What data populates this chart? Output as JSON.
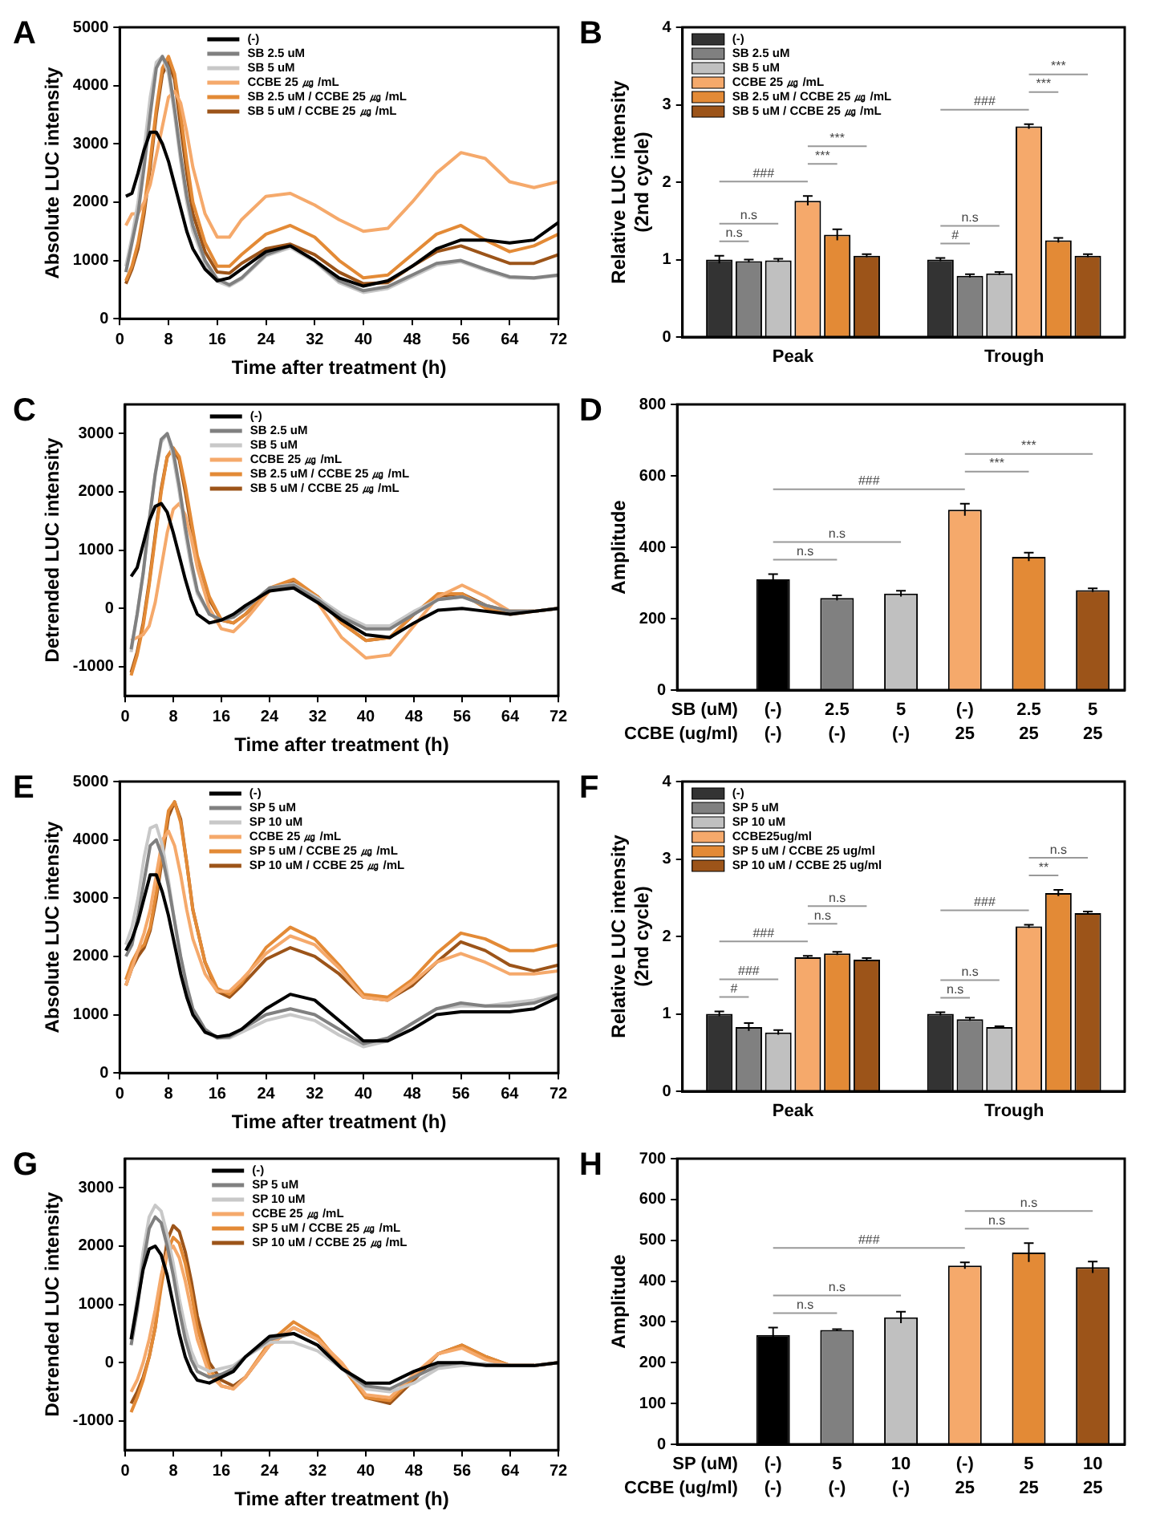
{
  "chart_data": [
    {
      "type": "line",
      "title": "A",
      "xlabel": "Time after treatment (h)",
      "ylabel": "Absolute LUC intensity",
      "xlim": [
        0,
        72
      ],
      "xticks": [
        0,
        8,
        16,
        24,
        32,
        40,
        48,
        56,
        64,
        72
      ],
      "ylim": [
        0,
        5000
      ],
      "yticks": [
        0,
        1000,
        2000,
        3000,
        4000,
        5000
      ],
      "legend": "top",
      "x": [
        1,
        2,
        3,
        4,
        5,
        6,
        7,
        8,
        9,
        10,
        11,
        12,
        14,
        16,
        18,
        20,
        24,
        28,
        32,
        36,
        40,
        44,
        48,
        52,
        56,
        60,
        64,
        68,
        72
      ],
      "series": [
        {
          "name": "(-)",
          "color": "#000000",
          "values": [
            2100,
            2150,
            2500,
            2900,
            3200,
            3200,
            3000,
            2700,
            2300,
            1900,
            1500,
            1200,
            850,
            650,
            700,
            850,
            1150,
            1250,
            1000,
            700,
            560,
            650,
            900,
            1200,
            1350,
            1350,
            1300,
            1350,
            1650
          ]
        },
        {
          "name": "SB 2.5 uM",
          "color": "#808080",
          "values": [
            800,
            1300,
            1800,
            2600,
            3500,
            4300,
            4500,
            4300,
            3600,
            2800,
            2100,
            1600,
            1000,
            680,
            580,
            700,
            1100,
            1250,
            1000,
            650,
            480,
            550,
            750,
            950,
            1000,
            850,
            720,
            700,
            750
          ]
        },
        {
          "name": "SB 5 uM",
          "color": "#c8c8c8",
          "values": [
            900,
            1400,
            2000,
            2900,
            3800,
            4400,
            4500,
            4200,
            3500,
            2700,
            2000,
            1500,
            950,
            640,
            560,
            680,
            1080,
            1220,
            980,
            620,
            450,
            520,
            720,
            920,
            980,
            830,
            700,
            690,
            740
          ]
        },
        {
          "name": "CCBE 25 ㎍ /mL",
          "color": "#f5a96b",
          "values": [
            1600,
            1800,
            1800,
            2000,
            2300,
            2800,
            3300,
            3800,
            3900,
            3700,
            3200,
            2600,
            1800,
            1400,
            1400,
            1700,
            2100,
            2150,
            1950,
            1700,
            1500,
            1550,
            2000,
            2500,
            2850,
            2750,
            2350,
            2250,
            2350
          ]
        },
        {
          "name": "SB 2.5 uM / CCBE 25 ㎍ /mL",
          "color": "#e38a36",
          "values": [
            650,
            900,
            1300,
            1900,
            2700,
            3600,
            4300,
            4500,
            4200,
            3500,
            2700,
            2000,
            1300,
            900,
            900,
            1100,
            1450,
            1600,
            1400,
            1000,
            700,
            750,
            1100,
            1450,
            1600,
            1350,
            1150,
            1250,
            1450
          ]
        },
        {
          "name": "SB 5 uM / CCBE 25 ㎍ /mL",
          "color": "#9c5419",
          "values": [
            600,
            850,
            1200,
            1800,
            2600,
            3500,
            4200,
            4400,
            4100,
            3300,
            2500,
            1800,
            1150,
            800,
            780,
            950,
            1200,
            1280,
            1100,
            800,
            600,
            620,
            900,
            1150,
            1250,
            1100,
            950,
            950,
            1100
          ]
        }
      ]
    },
    {
      "type": "bar",
      "title": "B",
      "ylabel": "Relative LUC intensity\n(2nd cycle)",
      "categories": [
        "Peak",
        "Trough"
      ],
      "ylim": [
        0,
        4
      ],
      "yticks": [
        0,
        1,
        2,
        3,
        4
      ],
      "legend": "top left",
      "annotations": [
        "n.s",
        "n.s",
        "###",
        "***",
        "***",
        "#",
        "n.s",
        "###",
        "***",
        "***"
      ],
      "series": [
        {
          "name": "(-)",
          "color": "#333333",
          "values": [
            1.0,
            1.0
          ],
          "errors": [
            0.05,
            0.02
          ]
        },
        {
          "name": "SB 2.5 uM",
          "color": "#808080",
          "values": [
            0.98,
            0.79
          ],
          "errors": [
            0.02,
            0.02
          ]
        },
        {
          "name": "SB 5 uM",
          "color": "#c0c0c0",
          "values": [
            0.99,
            0.82
          ],
          "errors": [
            0.02,
            0.02
          ]
        },
        {
          "name": "CCBE 25 ㎍ /mL",
          "color": "#f5a96b",
          "values": [
            1.76,
            2.72
          ],
          "errors": [
            0.06,
            0.03
          ]
        },
        {
          "name": "SB 2.5 uM / CCBE 25 ㎍ /mL",
          "color": "#e38a36",
          "values": [
            1.32,
            1.25
          ],
          "errors": [
            0.07,
            0.03
          ]
        },
        {
          "name": "SB 5 uM / CCBE 25 ㎍ /mL",
          "color": "#9c5419",
          "values": [
            1.05,
            1.05
          ],
          "errors": [
            0.02,
            0.02
          ]
        }
      ]
    },
    {
      "type": "line",
      "title": "C",
      "xlabel": "Time after treatment (h)",
      "ylabel": "Detrended LUC intensity",
      "xlim": [
        0,
        72
      ],
      "xticks": [
        0,
        8,
        16,
        24,
        32,
        40,
        48,
        56,
        64,
        72
      ],
      "ylim": [
        -1500,
        3500
      ],
      "yticks": [
        -1000,
        0,
        1000,
        2000,
        3000
      ],
      "legend": "top",
      "x": [
        1,
        2,
        3,
        4,
        5,
        6,
        7,
        8,
        9,
        10,
        11,
        12,
        14,
        16,
        18,
        20,
        24,
        28,
        32,
        36,
        40,
        44,
        48,
        52,
        56,
        60,
        64,
        68,
        72
      ],
      "series": [
        {
          "name": "(-)",
          "color": "#000000",
          "values": [
            550,
            700,
            1100,
            1500,
            1750,
            1800,
            1650,
            1300,
            900,
            500,
            150,
            -100,
            -250,
            -200,
            -100,
            50,
            300,
            350,
            100,
            -200,
            -450,
            -500,
            -250,
            -30,
            0,
            -50,
            -100,
            -50,
            0
          ]
        },
        {
          "name": "SB 2.5 uM",
          "color": "#808080",
          "values": [
            -700,
            -100,
            600,
            1500,
            2300,
            2900,
            3000,
            2700,
            2100,
            1400,
            800,
            300,
            -100,
            -200,
            -150,
            0,
            350,
            400,
            150,
            -150,
            -350,
            -350,
            -100,
            150,
            200,
            50,
            -50,
            -50,
            0
          ]
        },
        {
          "name": "SB 5 uM",
          "color": "#c8c8c8",
          "values": [
            -750,
            -100,
            600,
            1500,
            2300,
            2850,
            3000,
            2600,
            2000,
            1300,
            700,
            250,
            -100,
            -200,
            -150,
            0,
            350,
            420,
            180,
            -100,
            -300,
            -300,
            -50,
            150,
            200,
            50,
            -50,
            -50,
            0
          ]
        },
        {
          "name": "CCBE 25 ㎍ /mL",
          "color": "#f5a96b",
          "values": [
            -550,
            -500,
            -450,
            -300,
            100,
            700,
            1300,
            1700,
            1800,
            1600,
            1200,
            700,
            0,
            -350,
            -400,
            -200,
            300,
            400,
            100,
            -500,
            -850,
            -800,
            -300,
            200,
            400,
            200,
            -50,
            -50,
            0
          ]
        },
        {
          "name": "SB 2.5 uM / CCBE 25 ㎍ /mL",
          "color": "#e38a36",
          "values": [
            -1150,
            -800,
            -300,
            400,
            1200,
            2000,
            2600,
            2750,
            2600,
            2100,
            1500,
            900,
            200,
            -200,
            -250,
            -100,
            350,
            500,
            200,
            -250,
            -550,
            -500,
            -100,
            250,
            250,
            0,
            -100,
            -50,
            0
          ]
        },
        {
          "name": "SB 5 uM / CCBE 25 ㎍ /mL",
          "color": "#9c5419",
          "values": [
            -1100,
            -750,
            -250,
            450,
            1250,
            2050,
            2600,
            2750,
            2550,
            2000,
            1400,
            850,
            150,
            -200,
            -250,
            -100,
            300,
            450,
            200,
            -250,
            -550,
            -500,
            -100,
            200,
            250,
            50,
            -50,
            -50,
            0
          ]
        }
      ]
    },
    {
      "type": "bar",
      "title": "D",
      "ylabel": "Amplitude",
      "categories": [
        "SB (uM)\nCCBE (ug/ml)",
        "(-)\n(-)",
        "2.5\n(-)",
        "5\n(-)",
        "(-)\n25",
        "2.5\n25",
        "5\n25"
      ],
      "values": [
        null,
        310,
        258,
        270,
        505,
        373,
        280
      ],
      "errors": [
        null,
        15,
        7,
        8,
        17,
        12,
        5
      ],
      "colors": [
        null,
        "#000000",
        "#808080",
        "#c0c0c0",
        "#f5a96b",
        "#e38a36",
        "#9c5419"
      ],
      "ylim": [
        0,
        800
      ],
      "yticks": [
        0,
        200,
        400,
        600,
        800
      ],
      "annotations": [
        "n.s",
        "n.s",
        "###",
        "***",
        "***"
      ]
    },
    {
      "type": "line",
      "title": "E",
      "xlabel": "Time after treatment (h)",
      "ylabel": "Absolute LUC intensity",
      "xlim": [
        0,
        72
      ],
      "xticks": [
        0,
        8,
        16,
        24,
        32,
        40,
        48,
        56,
        64,
        72
      ],
      "ylim": [
        0,
        5000
      ],
      "yticks": [
        0,
        1000,
        2000,
        3000,
        4000,
        5000
      ],
      "legend": "top",
      "x": [
        1,
        2,
        3,
        4,
        5,
        6,
        7,
        8,
        9,
        10,
        11,
        12,
        14,
        16,
        18,
        20,
        24,
        28,
        32,
        36,
        40,
        44,
        48,
        52,
        56,
        60,
        64,
        68,
        72
      ],
      "series": [
        {
          "name": "(-)",
          "color": "#000000",
          "values": [
            2100,
            2300,
            2600,
            3000,
            3400,
            3400,
            3100,
            2700,
            2200,
            1700,
            1300,
            1000,
            700,
            620,
            650,
            750,
            1100,
            1350,
            1250,
            900,
            550,
            550,
            750,
            1000,
            1050,
            1050,
            1050,
            1100,
            1300
          ]
        },
        {
          "name": "SP 5 uM",
          "color": "#808080",
          "values": [
            2000,
            2200,
            2700,
            3300,
            3900,
            4000,
            3700,
            3200,
            2600,
            2000,
            1500,
            1100,
            750,
            600,
            620,
            750,
            1000,
            1100,
            1000,
            750,
            500,
            600,
            850,
            1100,
            1200,
            1150,
            1150,
            1200,
            1350
          ]
        },
        {
          "name": "SP 10 uM",
          "color": "#c8c8c8",
          "values": [
            2200,
            2500,
            3000,
            3700,
            4200,
            4250,
            3900,
            3300,
            2600,
            1900,
            1400,
            1000,
            700,
            600,
            600,
            700,
            900,
            1000,
            900,
            650,
            450,
            550,
            850,
            1100,
            1150,
            1150,
            1200,
            1250,
            1350
          ]
        },
        {
          "name": "CCBE 25 ㎍ /mL",
          "color": "#f5a96b",
          "values": [
            1500,
            1800,
            2100,
            2400,
            2800,
            3400,
            4000,
            4150,
            3900,
            3400,
            2800,
            2300,
            1700,
            1400,
            1400,
            1600,
            2050,
            2350,
            2200,
            1800,
            1300,
            1250,
            1550,
            1900,
            2050,
            1900,
            1700,
            1700,
            1750
          ]
        },
        {
          "name": "SP 5 uM / CCBE 25 ㎍ /mL",
          "color": "#e38a36",
          "values": [
            1600,
            1900,
            2100,
            2200,
            2500,
            3100,
            3800,
            4500,
            4650,
            4300,
            3600,
            2800,
            1900,
            1450,
            1350,
            1550,
            2150,
            2500,
            2300,
            1850,
            1350,
            1300,
            1600,
            2050,
            2400,
            2300,
            2100,
            2100,
            2200
          ]
        },
        {
          "name": "SP 10 uM / CCBE 25 ㎍ /mL",
          "color": "#9c5419",
          "values": [
            1500,
            1800,
            2000,
            2150,
            2450,
            3000,
            3700,
            4400,
            4650,
            4350,
            3600,
            2800,
            1900,
            1400,
            1300,
            1500,
            1950,
            2150,
            2000,
            1700,
            1300,
            1250,
            1500,
            1900,
            2250,
            2100,
            1850,
            1750,
            1850
          ]
        }
      ]
    },
    {
      "type": "bar",
      "title": "F",
      "ylabel": "Relative LUC intensity\n(2nd cycle)",
      "categories": [
        "Peak",
        "Trough"
      ],
      "ylim": [
        0,
        4
      ],
      "yticks": [
        0,
        1,
        2,
        3,
        4
      ],
      "legend": "top left",
      "annotations": [
        "#",
        "###",
        "###",
        "n.s",
        "n.s",
        "n.s",
        "n.s",
        "###",
        "**",
        "n.s"
      ],
      "series": [
        {
          "name": "(-)",
          "color": "#333333",
          "values": [
            1.0,
            1.0
          ],
          "errors": [
            0.03,
            0.02
          ]
        },
        {
          "name": "SP 5 uM",
          "color": "#808080",
          "values": [
            0.83,
            0.93
          ],
          "errors": [
            0.05,
            0.02
          ]
        },
        {
          "name": "SP 10 uM",
          "color": "#c0c0c0",
          "values": [
            0.76,
            0.83
          ],
          "errors": [
            0.03,
            0.01
          ]
        },
        {
          "name": "CCBE25ug/ml",
          "color": "#f5a96b",
          "values": [
            1.73,
            2.13
          ],
          "errors": [
            0.02,
            0.02
          ]
        },
        {
          "name": "SP 5 uM / CCBE 25 ug/ml",
          "color": "#e38a36",
          "values": [
            1.78,
            2.56
          ],
          "errors": [
            0.02,
            0.04
          ]
        },
        {
          "name": "SP 10 uM / CCBE 25 ug/ml",
          "color": "#9c5419",
          "values": [
            1.7,
            2.3
          ],
          "errors": [
            0.02,
            0.02
          ]
        }
      ]
    },
    {
      "type": "line",
      "title": "G",
      "xlabel": "Time after treatment (h)",
      "ylabel": "Detrended LUC intensity",
      "xlim": [
        0,
        72
      ],
      "xticks": [
        0,
        8,
        16,
        24,
        32,
        40,
        48,
        56,
        64,
        72
      ],
      "ylim": [
        -1500,
        3500
      ],
      "yticks": [
        -1000,
        0,
        1000,
        2000,
        3000
      ],
      "legend": "top",
      "x": [
        1,
        2,
        3,
        4,
        5,
        6,
        7,
        8,
        9,
        10,
        11,
        12,
        14,
        16,
        18,
        20,
        24,
        28,
        32,
        36,
        40,
        44,
        48,
        52,
        56,
        60,
        64,
        68,
        72
      ],
      "series": [
        {
          "name": "(-)",
          "color": "#000000",
          "values": [
            400,
            1000,
            1600,
            1950,
            2000,
            1850,
            1500,
            1000,
            500,
            100,
            -150,
            -300,
            -350,
            -250,
            -150,
            100,
            450,
            500,
            300,
            -100,
            -350,
            -350,
            -150,
            0,
            0,
            -50,
            -50,
            -50,
            0
          ]
        },
        {
          "name": "SP 5 uM",
          "color": "#808080",
          "values": [
            300,
            900,
            1700,
            2300,
            2500,
            2400,
            2000,
            1500,
            900,
            400,
            50,
            -150,
            -250,
            -200,
            -100,
            100,
            400,
            500,
            300,
            -100,
            -400,
            -450,
            -250,
            -50,
            0,
            -30,
            -50,
            -50,
            0
          ]
        },
        {
          "name": "SP 10 uM",
          "color": "#c8c8c8",
          "values": [
            400,
            1100,
            1900,
            2500,
            2700,
            2600,
            2200,
            1700,
            1100,
            600,
            200,
            -50,
            -150,
            -100,
            -50,
            100,
            350,
            350,
            200,
            -100,
            -450,
            -500,
            -350,
            -100,
            -50,
            -30,
            -50,
            -50,
            0
          ]
        },
        {
          "name": "CCBE 25 ㎍ /mL",
          "color": "#f5a96b",
          "values": [
            -500,
            -300,
            0,
            400,
            900,
            1500,
            1900,
            2000,
            1800,
            1400,
            900,
            400,
            -200,
            -400,
            -450,
            -250,
            300,
            600,
            400,
            0,
            -550,
            -600,
            -200,
            150,
            250,
            50,
            -50,
            -50,
            0
          ]
        },
        {
          "name": "SP 5 uM / CCBE 25 ㎍ /mL",
          "color": "#e38a36",
          "values": [
            -850,
            -600,
            -300,
            100,
            600,
            1300,
            1900,
            2150,
            2050,
            1700,
            1200,
            600,
            -100,
            -400,
            -450,
            -250,
            350,
            700,
            450,
            -50,
            -600,
            -650,
            -250,
            150,
            300,
            100,
            -50,
            -50,
            0
          ]
        },
        {
          "name": "SP 10 uM / CCBE 25 ㎍ /mL",
          "color": "#9c5419",
          "values": [
            -700,
            -500,
            -250,
            100,
            600,
            1400,
            2100,
            2350,
            2250,
            1900,
            1400,
            800,
            0,
            -300,
            -400,
            -250,
            300,
            600,
            400,
            -50,
            -600,
            -700,
            -300,
            150,
            300,
            100,
            -50,
            -50,
            0
          ]
        }
      ]
    },
    {
      "type": "bar",
      "title": "H",
      "ylabel": "Amplitude",
      "categories": [
        "SP (uM)\nCCBE (ug/ml)",
        "(-)\n(-)",
        "5\n(-)",
        "10\n(-)",
        "(-)\n25",
        "5\n25",
        "10\n25"
      ],
      "values": [
        null,
        268,
        280,
        311,
        438,
        470,
        434
      ],
      "errors": [
        null,
        18,
        2,
        14,
        8,
        23,
        14
      ],
      "colors": [
        null,
        "#000000",
        "#808080",
        "#c0c0c0",
        "#f5a96b",
        "#e38a36",
        "#9c5419"
      ],
      "ylim": [
        0,
        700
      ],
      "yticks": [
        0,
        100,
        200,
        300,
        400,
        500,
        600,
        700
      ],
      "annotations": [
        "n.s",
        "n.s",
        "###",
        "n.s",
        "n.s"
      ]
    }
  ]
}
